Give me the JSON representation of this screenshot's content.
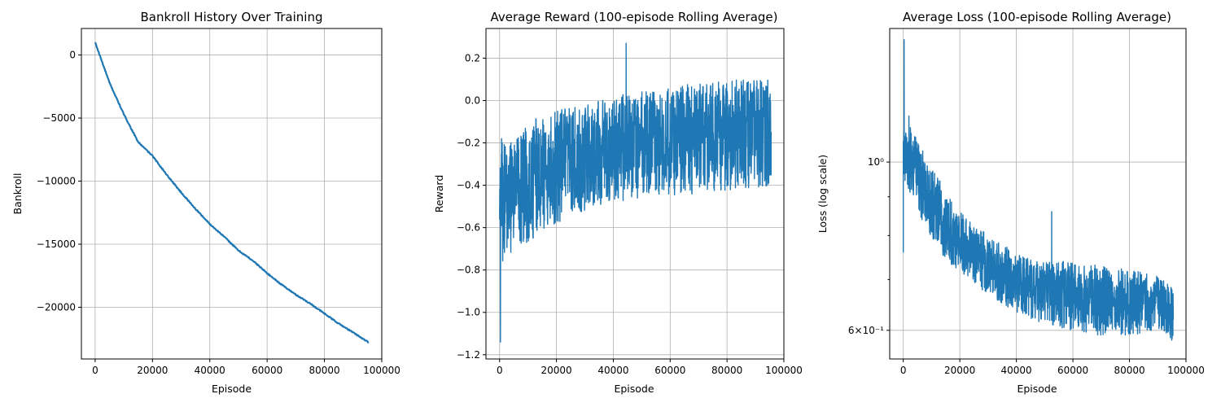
{
  "chart_data": [
    {
      "type": "line",
      "title": "Bankroll History Over Training",
      "xlabel": "Episode",
      "ylabel": "Bankroll",
      "xlim": [
        -4800,
        100000
      ],
      "ylim": [
        -24100,
        2100
      ],
      "xticks": [
        0,
        20000,
        40000,
        60000,
        80000,
        100000
      ],
      "xtick_labels": [
        "0",
        "20000",
        "40000",
        "60000",
        "80000",
        "100000"
      ],
      "yticks": [
        0,
        -5000,
        -10000,
        -15000,
        -20000
      ],
      "ytick_labels": [
        "0",
        "−5000",
        "−10000",
        "−15000",
        "−20000"
      ],
      "grid": true,
      "color": "#1f77b4",
      "series": [
        {
          "x": [
            0,
            5000,
            10000,
            15000,
            20000,
            25000,
            30000,
            35000,
            40000,
            45000,
            50000,
            55000,
            60000,
            65000,
            70000,
            75000,
            80000,
            85000,
            90000,
            95500
          ],
          "y": [
            1000,
            -2200,
            -4700,
            -6900,
            -8000,
            -9500,
            -10900,
            -12200,
            -13400,
            -14400,
            -15500,
            -16300,
            -17300,
            -18200,
            -19000,
            -19700,
            -20500,
            -21300,
            -22000,
            -22800
          ]
        }
      ]
    },
    {
      "type": "line",
      "title": "Average Reward (100-episode Rolling Average)",
      "xlabel": "Episode",
      "ylabel": "Reward",
      "xlim": [
        -4800,
        100000
      ],
      "ylim": [
        -1.22,
        0.34
      ],
      "xticks": [
        0,
        20000,
        40000,
        60000,
        80000,
        100000
      ],
      "xtick_labels": [
        "0",
        "20000",
        "40000",
        "60000",
        "80000",
        "100000"
      ],
      "yticks": [
        0.2,
        0.0,
        -0.2,
        -0.4,
        -0.6,
        -0.8,
        -1.0,
        -1.2
      ],
      "ytick_labels": [
        "0.2",
        "0.0",
        "−0.2",
        "−0.4",
        "−0.6",
        "−0.8",
        "−1.0",
        "−1.2"
      ],
      "grid": true,
      "color": "#1f77b4",
      "series": [
        {
          "x": [
            0,
            300,
            700,
            1000,
            2000,
            3000,
            4000,
            5000,
            6000,
            8000,
            10000,
            12000,
            15000,
            20000,
            25000,
            30000,
            35000,
            40000,
            44000,
            44500,
            45000,
            50000,
            55000,
            60000,
            65000,
            70000,
            75000,
            80000,
            85000,
            90000,
            95500
          ],
          "y": [
            -0.5,
            -1.14,
            -0.18,
            -0.55,
            -0.3,
            -0.65,
            -0.2,
            -0.6,
            -0.25,
            -0.5,
            -0.4,
            -0.35,
            -0.45,
            -0.3,
            -0.35,
            -0.25,
            -0.3,
            -0.25,
            -0.2,
            0.27,
            -0.2,
            -0.25,
            -0.2,
            -0.3,
            -0.15,
            -0.2,
            -0.25,
            -0.15,
            -0.2,
            -0.15,
            -0.15
          ]
        }
      ],
      "envelope": {
        "x": [
          0,
          2000,
          5000,
          10000,
          15000,
          20000,
          25000,
          30000,
          40000,
          50000,
          60000,
          70000,
          80000,
          90000,
          95500
        ],
        "lower": [
          -0.8,
          -0.75,
          -0.7,
          -0.68,
          -0.62,
          -0.58,
          -0.55,
          -0.52,
          -0.48,
          -0.46,
          -0.45,
          -0.44,
          -0.43,
          -0.42,
          -0.4
        ],
        "upper": [
          -0.2,
          -0.2,
          -0.18,
          -0.1,
          -0.07,
          -0.05,
          -0.03,
          -0.02,
          0.02,
          0.05,
          0.07,
          0.08,
          0.1,
          0.1,
          0.1
        ]
      }
    },
    {
      "type": "line",
      "title": "Average Loss (100-episode Rolling Average)",
      "xlabel": "Episode",
      "ylabel": "Loss (log scale)",
      "yscale": "log",
      "xlim": [
        -4800,
        100000
      ],
      "ylim": [
        0.55,
        1.5
      ],
      "xticks": [
        0,
        20000,
        40000,
        60000,
        80000,
        100000
      ],
      "xtick_labels": [
        "0",
        "20000",
        "40000",
        "60000",
        "80000",
        "100000"
      ],
      "yticks_major": [
        1.0,
        0.6
      ],
      "ytick_labels": [
        "10⁰",
        "6×10⁻¹"
      ],
      "yticks_minor": [
        0.7,
        0.8,
        0.9
      ],
      "grid": true,
      "color": "#1f77b4",
      "series": [
        {
          "x": [
            0,
            300,
            600,
            1000,
            2000,
            3000,
            4000,
            5000,
            6000,
            8000,
            10000,
            12000,
            15000,
            18000,
            20000,
            25000,
            30000,
            35000,
            40000,
            45000,
            50000,
            52000,
            52500,
            53000,
            55000,
            60000,
            65000,
            70000,
            75000,
            80000,
            85000,
            90000,
            95500
          ],
          "y": [
            0.76,
            1.45,
            1.02,
            1.05,
            1.15,
            1.0,
            1.08,
            0.98,
            0.95,
            0.93,
            0.9,
            0.86,
            0.82,
            0.8,
            0.78,
            0.76,
            0.74,
            0.72,
            0.7,
            0.69,
            0.68,
            0.71,
            0.86,
            0.7,
            0.68,
            0.67,
            0.66,
            0.66,
            0.66,
            0.65,
            0.65,
            0.65,
            0.62
          ]
        }
      ],
      "envelope": {
        "x": [
          0,
          3000,
          6000,
          10000,
          15000,
          20000,
          30000,
          40000,
          50000,
          60000,
          70000,
          80000,
          90000,
          95500
        ],
        "lower": [
          0.95,
          0.9,
          0.85,
          0.78,
          0.74,
          0.71,
          0.67,
          0.63,
          0.61,
          0.6,
          0.59,
          0.59,
          0.6,
          0.58
        ],
        "upper": [
          1.1,
          1.12,
          1.05,
          0.98,
          0.92,
          0.86,
          0.8,
          0.76,
          0.74,
          0.74,
          0.73,
          0.72,
          0.71,
          0.68
        ]
      }
    }
  ]
}
